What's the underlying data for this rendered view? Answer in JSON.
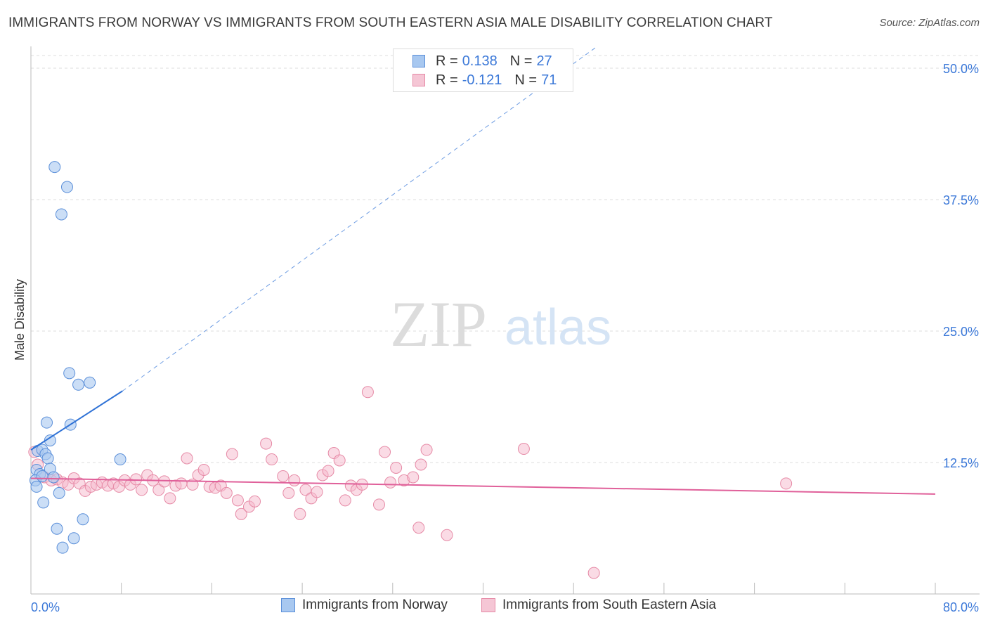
{
  "title": "IMMIGRANTS FROM NORWAY VS IMMIGRANTS FROM SOUTH EASTERN ASIA MALE DISABILITY CORRELATION CHART",
  "source": "Source: ZipAtlas.com",
  "watermark": {
    "zip": "ZIP",
    "atlas": "atlas"
  },
  "legend": {
    "rows": [
      {
        "r_label": "R =",
        "r_value": "0.138",
        "n_label": "N =",
        "n_value": "27"
      },
      {
        "r_label": "R =",
        "r_value": "-0.121",
        "n_label": "N =",
        "n_value": "71"
      }
    ]
  },
  "colors": {
    "norway_fill": "#a8c8f0",
    "norway_stroke": "#5b8fd9",
    "norway_line": "#2f72d6",
    "sea_fill": "#f5b8cb",
    "sea_stroke": "#e68aa6",
    "sea_line": "#e0609a",
    "axis_label": "#3b78d8",
    "grid": "#dddddd"
  },
  "chart_data": {
    "type": "scatter",
    "title": "IMMIGRANTS FROM NORWAY VS IMMIGRANTS FROM SOUTH EASTERN ASIA MALE DISABILITY CORRELATION CHART",
    "xlabel": "",
    "ylabel": "Male Disability",
    "xlim": [
      0,
      80
    ],
    "ylim": [
      0,
      52
    ],
    "x_tick_labels": [
      "0.0%",
      "80.0%"
    ],
    "y_ticks": [
      12.5,
      25.0,
      37.5,
      50.0
    ],
    "y_tick_labels": [
      "12.5%",
      "25.0%",
      "37.5%",
      "50.0%"
    ],
    "grid": true,
    "legend_position": "top-center",
    "series": [
      {
        "name": "Immigrants from Norway",
        "R": 0.138,
        "N": 27,
        "trend": {
          "x0": 0,
          "y0": 13.7,
          "x1": 8.1,
          "y1": 19.3,
          "dashed_to_x": 50,
          "dashed_to_y": 52
        },
        "points": [
          [
            2.1,
            40.6
          ],
          [
            3.2,
            38.7
          ],
          [
            2.7,
            36.1
          ],
          [
            3.4,
            21.0
          ],
          [
            4.2,
            19.9
          ],
          [
            5.2,
            20.1
          ],
          [
            1.4,
            16.3
          ],
          [
            3.5,
            16.1
          ],
          [
            1.7,
            14.6
          ],
          [
            0.6,
            13.6
          ],
          [
            1.0,
            13.7
          ],
          [
            1.3,
            13.3
          ],
          [
            1.5,
            12.9
          ],
          [
            7.9,
            12.8
          ],
          [
            0.5,
            11.8
          ],
          [
            0.8,
            11.4
          ],
          [
            1.7,
            11.9
          ],
          [
            2.0,
            11.1
          ],
          [
            0.4,
            10.8
          ],
          [
            0.5,
            10.2
          ],
          [
            2.5,
            9.6
          ],
          [
            1.1,
            8.7
          ],
          [
            2.3,
            6.2
          ],
          [
            4.6,
            7.1
          ],
          [
            3.8,
            5.3
          ],
          [
            2.8,
            4.4
          ],
          [
            1.0,
            11.2
          ]
        ]
      },
      {
        "name": "Immigrants from South Eastern Asia",
        "R": -0.121,
        "N": 71,
        "trend": {
          "x0": 0,
          "y0": 11.0,
          "x1": 80,
          "y1": 9.5
        },
        "points": [
          [
            0.3,
            13.5
          ],
          [
            0.6,
            12.3
          ],
          [
            1.2,
            11.1
          ],
          [
            1.8,
            10.8
          ],
          [
            2.3,
            10.9
          ],
          [
            2.8,
            10.6
          ],
          [
            3.3,
            10.4
          ],
          [
            3.8,
            11.0
          ],
          [
            4.3,
            10.5
          ],
          [
            4.8,
            9.8
          ],
          [
            5.3,
            10.2
          ],
          [
            5.8,
            10.4
          ],
          [
            6.3,
            10.6
          ],
          [
            6.8,
            10.3
          ],
          [
            7.3,
            10.5
          ],
          [
            7.8,
            10.2
          ],
          [
            8.3,
            10.8
          ],
          [
            8.8,
            10.4
          ],
          [
            9.3,
            10.9
          ],
          [
            9.8,
            9.9
          ],
          [
            10.3,
            11.3
          ],
          [
            10.8,
            10.8
          ],
          [
            11.3,
            9.9
          ],
          [
            11.8,
            10.7
          ],
          [
            12.3,
            9.1
          ],
          [
            12.8,
            10.3
          ],
          [
            13.3,
            10.5
          ],
          [
            13.8,
            12.9
          ],
          [
            14.3,
            10.4
          ],
          [
            14.8,
            11.3
          ],
          [
            15.3,
            11.8
          ],
          [
            15.8,
            10.2
          ],
          [
            16.3,
            10.1
          ],
          [
            16.8,
            10.3
          ],
          [
            17.3,
            9.6
          ],
          [
            17.8,
            13.3
          ],
          [
            18.3,
            8.9
          ],
          [
            18.6,
            7.6
          ],
          [
            19.3,
            8.3
          ],
          [
            19.8,
            8.8
          ],
          [
            20.8,
            14.3
          ],
          [
            21.3,
            12.8
          ],
          [
            22.3,
            11.2
          ],
          [
            22.8,
            9.6
          ],
          [
            23.3,
            10.8
          ],
          [
            23.8,
            7.6
          ],
          [
            24.3,
            9.9
          ],
          [
            24.8,
            9.1
          ],
          [
            25.3,
            9.7
          ],
          [
            25.8,
            11.3
          ],
          [
            26.3,
            11.7
          ],
          [
            26.8,
            13.4
          ],
          [
            27.3,
            12.7
          ],
          [
            27.8,
            8.9
          ],
          [
            28.3,
            10.3
          ],
          [
            28.8,
            9.9
          ],
          [
            29.3,
            10.4
          ],
          [
            29.8,
            19.2
          ],
          [
            30.8,
            8.5
          ],
          [
            31.3,
            13.5
          ],
          [
            31.8,
            10.6
          ],
          [
            32.3,
            12.0
          ],
          [
            33.0,
            10.8
          ],
          [
            34.3,
            6.3
          ],
          [
            34.5,
            12.3
          ],
          [
            35.0,
            13.7
          ],
          [
            36.8,
            5.6
          ],
          [
            43.6,
            13.8
          ],
          [
            49.8,
            2.0
          ],
          [
            66.8,
            10.5
          ],
          [
            33.8,
            11.1
          ]
        ]
      }
    ]
  },
  "bottom_legend": [
    {
      "label": "Immigrants from Norway"
    },
    {
      "label": "Immigrants from South Eastern Asia"
    }
  ]
}
